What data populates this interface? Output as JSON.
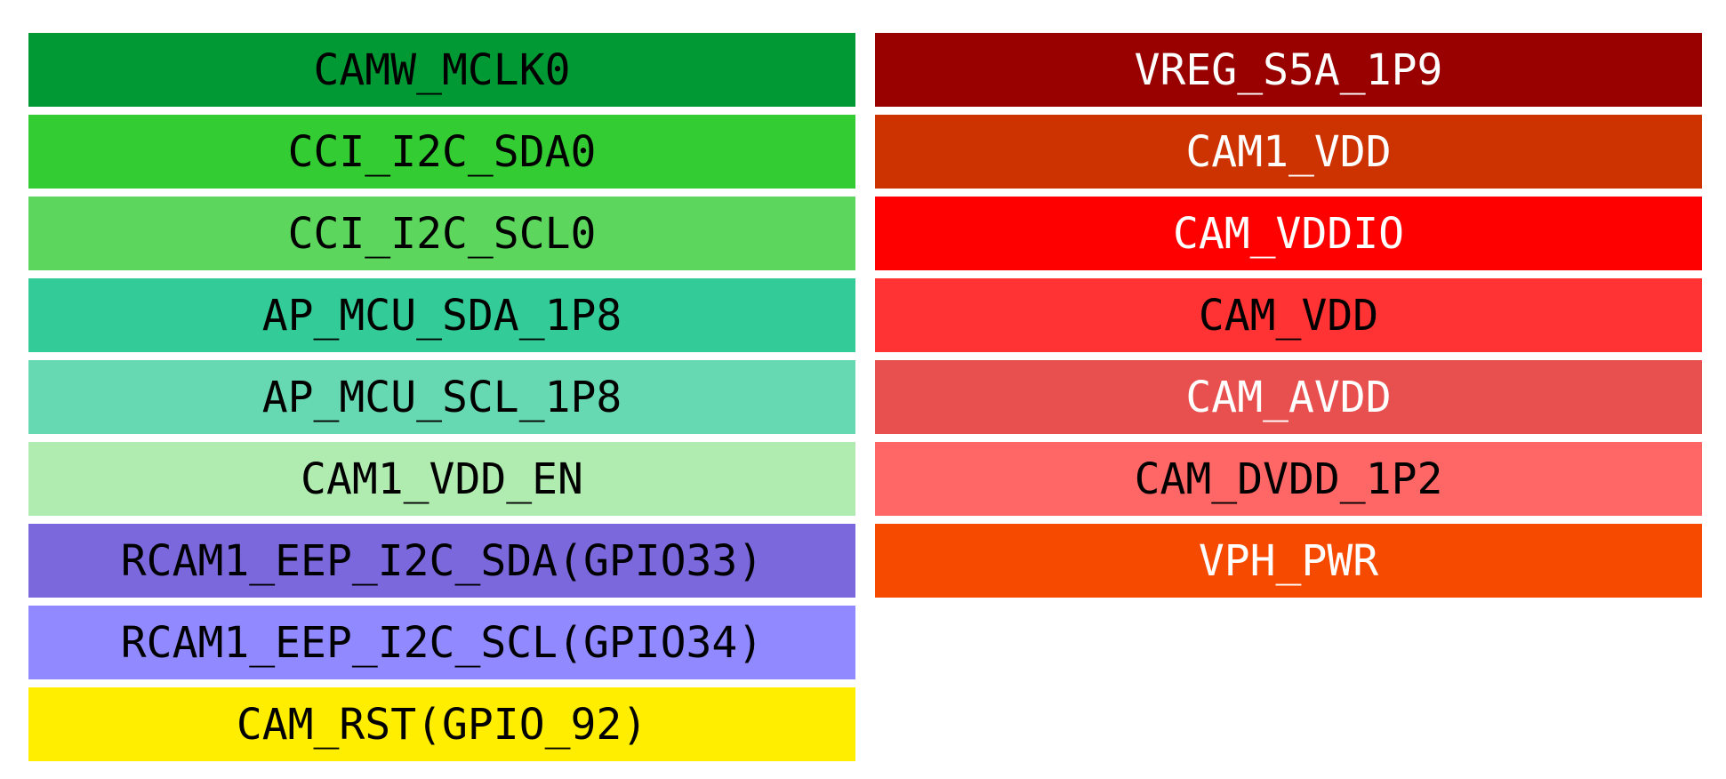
{
  "left": [
    "CAMW_MCLK0",
    "CCI_I2C_SDA0",
    "CCI_I2C_SCL0",
    "AP_MCU_SDA_1P8",
    "AP_MCU_SCL_1P8",
    "CAM1_VDD_EN",
    "RCAM1_EEP_I2C_SDA(GPIO33)",
    "RCAM1_EEP_I2C_SCL(GPIO34)",
    "CAM_RST(GPIO_92)"
  ],
  "right": [
    "VREG_S5A_1P9",
    "CAM1_VDD",
    "CAM_VDDIO",
    "CAM_VDD",
    "CAM_AVDD",
    "CAM_DVDD_1P2",
    "VPH_PWR"
  ]
}
